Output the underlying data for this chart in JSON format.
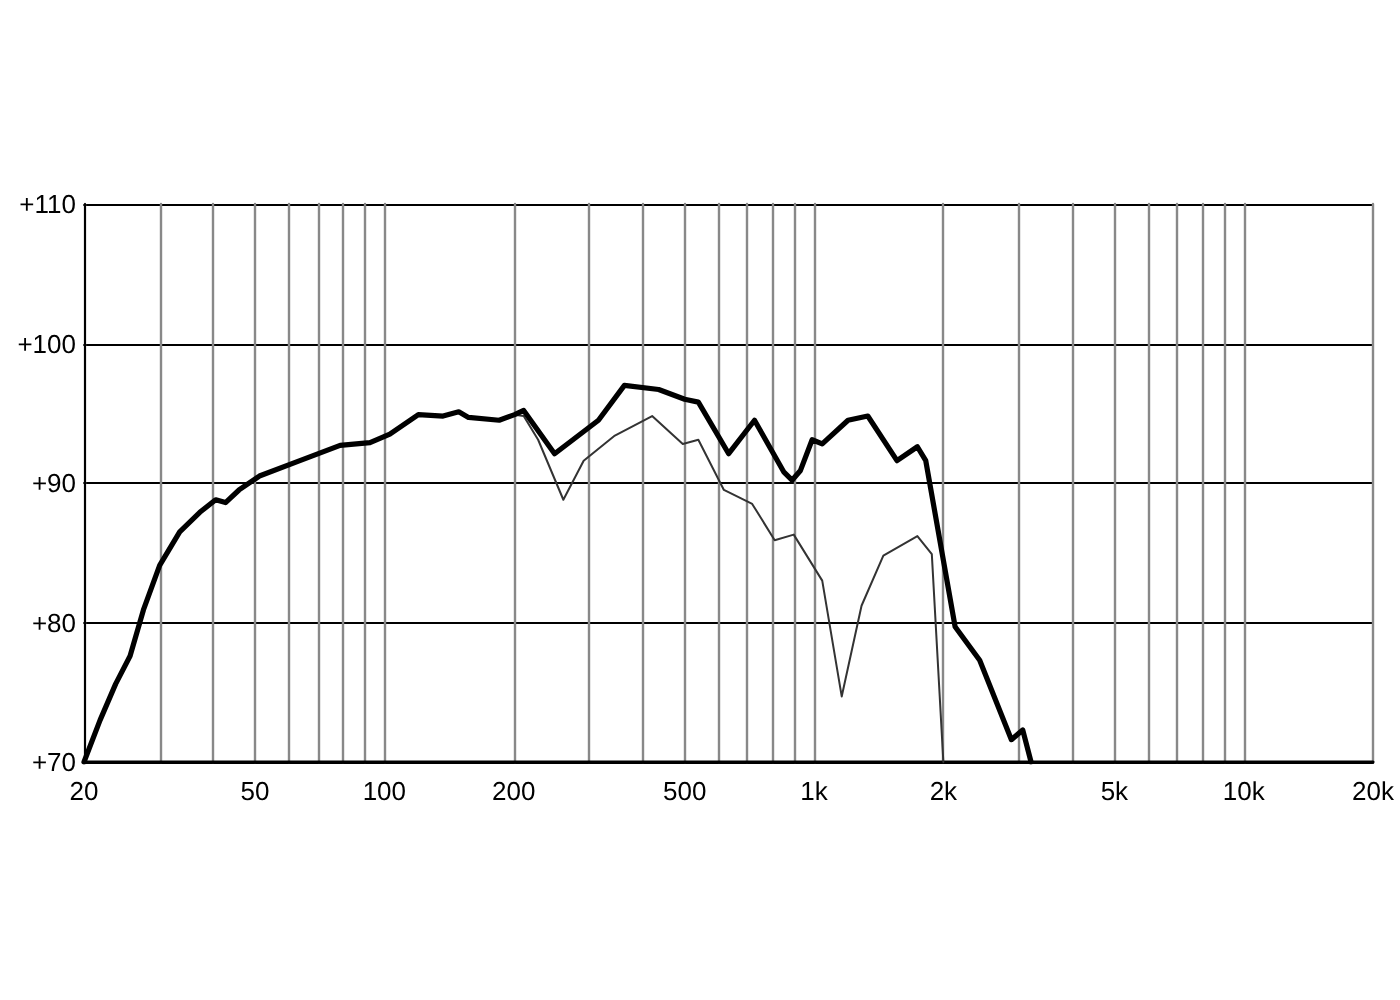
{
  "chart_data": {
    "type": "line",
    "log": "x",
    "grid": true,
    "marker": "none",
    "line_style": "solid",
    "xlim": [
      20,
      20000
    ],
    "xticks": [
      20,
      {
        "value": 30,
        "label": null
      },
      {
        "value": 40,
        "label": null
      },
      50,
      {
        "value": 60,
        "label": null
      },
      {
        "value": 70,
        "label": null
      },
      {
        "value": 80,
        "label": null
      },
      {
        "value": 90,
        "label": null
      },
      100,
      200,
      {
        "value": 300,
        "label": null
      },
      {
        "value": 400,
        "label": null
      },
      500,
      {
        "value": 600,
        "label": null
      },
      {
        "value": 700,
        "label": null
      },
      {
        "value": 800,
        "label": null
      },
      {
        "value": 900,
        "label": null
      },
      {
        "value": 1000,
        "label": "1k"
      },
      {
        "value": 2000,
        "label": "2k"
      },
      {
        "value": 3000,
        "label": null
      },
      {
        "value": 4000,
        "label": null
      },
      {
        "value": 5000,
        "label": "5k"
      },
      {
        "value": 6000,
        "label": null
      },
      {
        "value": 7000,
        "label": null
      },
      {
        "value": 8000,
        "label": null
      },
      {
        "value": 9000,
        "label": null
      },
      {
        "value": 10000,
        "label": "10k"
      },
      {
        "value": 20000,
        "label": "20k"
      }
    ],
    "ylim": [
      70,
      110
    ],
    "yticks": [
      {
        "value": 70,
        "label": "+70"
      },
      {
        "value": 80,
        "label": "+80"
      },
      {
        "value": 90,
        "label": "+90"
      },
      {
        "value": 100,
        "label": "+100"
      },
      {
        "value": 110,
        "label": "+110"
      }
    ],
    "series": [
      {
        "color": "#000000",
        "x": [
          20,
          21.8,
          23.7,
          25.6,
          27.5,
          30,
          33.4,
          37.2,
          40.5,
          42.7,
          45.9,
          51.2,
          63.6,
          78.9,
          92.6,
          103,
          120,
          137,
          149,
          157,
          185,
          201,
          211,
          249,
          315,
          362,
          435,
          500,
          538,
          633,
          727,
          850,
          889,
          930,
          990,
          1045,
          1200,
          1334,
          1560,
          1740,
          1820,
          2130,
          2430,
          2880,
          3060,
          3200
        ],
        "values": [
          70,
          73,
          75.6,
          77.6,
          80.9,
          84.1,
          86.5,
          87.9,
          88.8,
          88.6,
          89.5,
          90.5,
          91.6,
          92.7,
          92.9,
          93.5,
          94.9,
          94.8,
          95.1,
          94.7,
          94.5,
          94.9,
          95.2,
          92.1,
          94.5,
          97,
          96.7,
          96,
          95.8,
          92.1,
          94.5,
          90.8,
          90.2,
          90.9,
          93.1,
          92.8,
          94.5,
          94.8,
          91.6,
          92.6,
          91.6,
          79.7,
          77.3,
          71.6,
          72.3,
          70
        ]
      },
      {
        "color": "#333333",
        "x": [
          201,
          211,
          228,
          261,
          291,
          344,
          420,
          495,
          538,
          617,
          718,
          810,
          897,
          1045,
          1160,
          1290,
          1450,
          1740,
          1880,
          2000
        ],
        "values": [
          94.9,
          94.8,
          93.1,
          88.8,
          91.6,
          93.4,
          94.8,
          92.8,
          93.1,
          89.5,
          88.5,
          85.9,
          86.3,
          83,
          74.7,
          81.2,
          84.8,
          86.2,
          84.9,
          70
        ]
      }
    ]
  }
}
